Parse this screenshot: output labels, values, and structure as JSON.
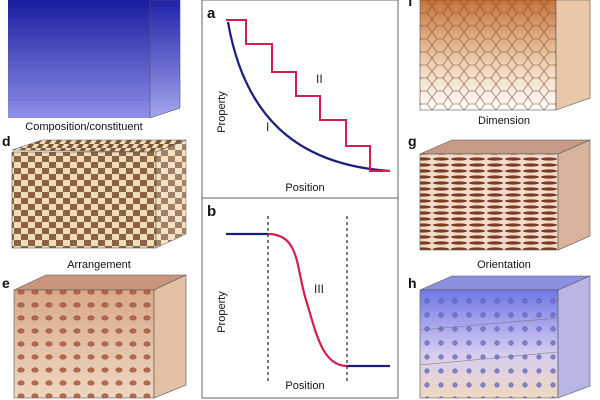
{
  "panels": {
    "c": {
      "letter": "",
      "caption": "Composition/constituent"
    },
    "d": {
      "letter": "d",
      "caption": "Arrangement"
    },
    "e": {
      "letter": "e",
      "caption": ""
    },
    "f": {
      "letter": "f",
      "caption": "Dimension"
    },
    "g": {
      "letter": "g",
      "caption": "Orientation"
    },
    "h": {
      "letter": "h",
      "caption": ""
    }
  },
  "plot_a": {
    "letter": "a",
    "ylabel": "Property",
    "xlabel": "Position",
    "curve_labels": {
      "smooth": "I",
      "stepped": "II"
    }
  },
  "plot_b": {
    "letter": "b",
    "ylabel": "Property",
    "xlabel": "Position",
    "curve_labels": {
      "sigmoid": "III"
    }
  },
  "colors": {
    "navy_curve": "#1c1f7a",
    "red_curve": "#d21f4b",
    "frame": "#555555",
    "blue_block": "#2a2fb8",
    "brown_block": "#8a4a2a",
    "tan_block": "#e8c9a8"
  }
}
